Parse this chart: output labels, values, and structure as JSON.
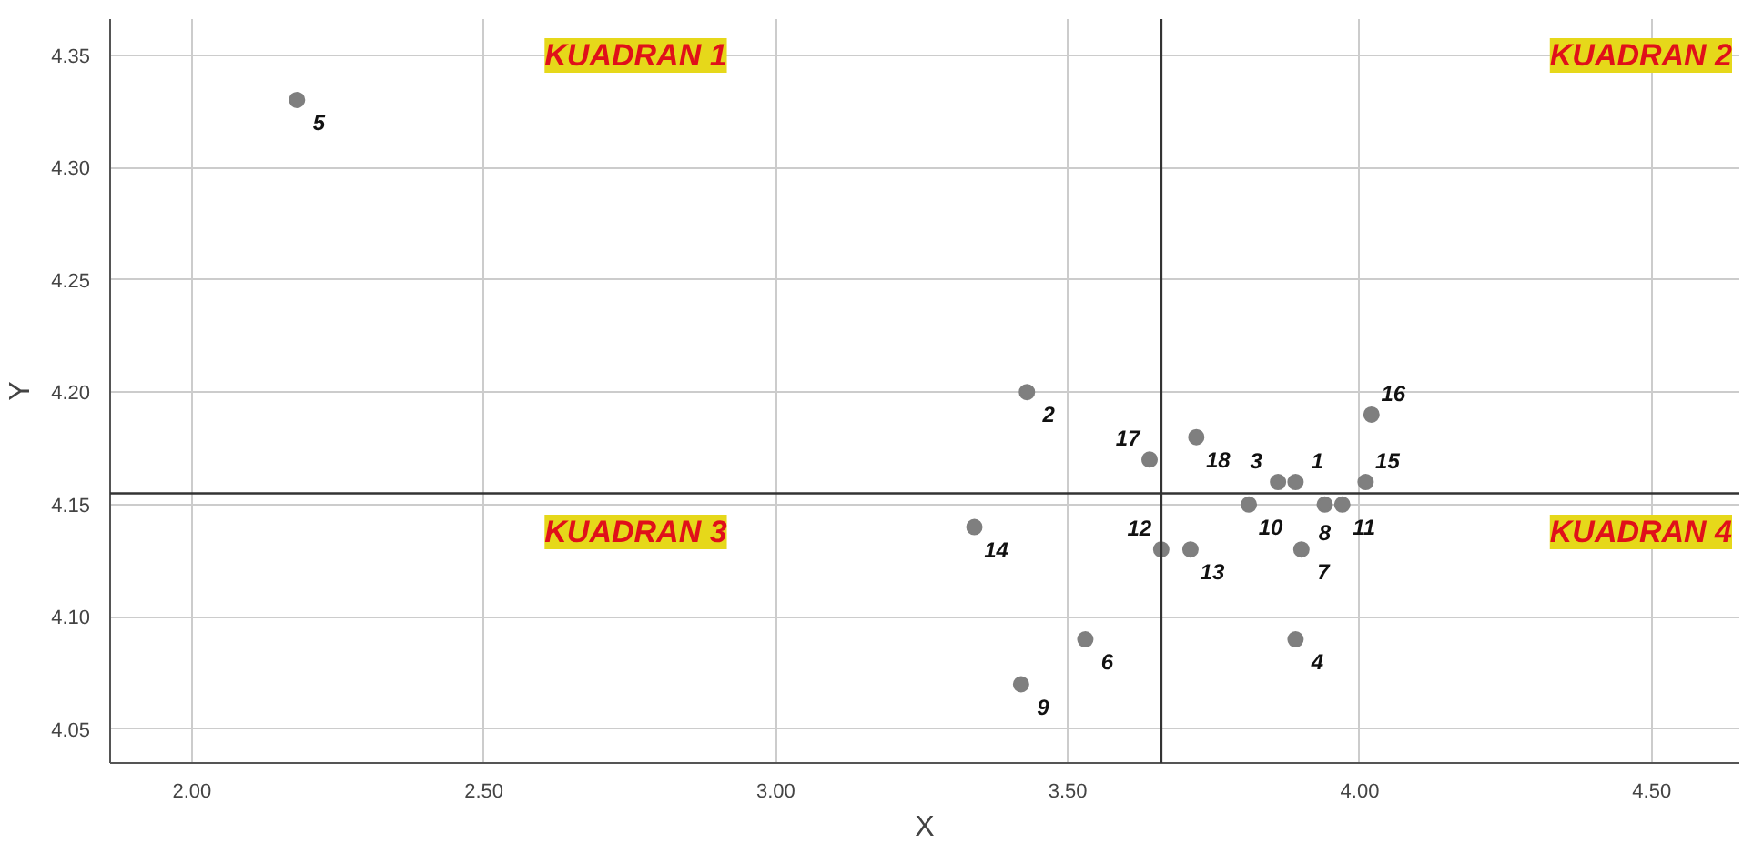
{
  "chart_data": {
    "type": "scatter",
    "xlabel": "X",
    "ylabel": "Y",
    "xlim": [
      1.86,
      4.65
    ],
    "ylim": [
      4.035,
      4.366
    ],
    "xticks": [
      {
        "value": 2,
        "label": "2.00"
      },
      {
        "value": 2.5,
        "label": "2.50"
      },
      {
        "value": 3,
        "label": "3.00"
      },
      {
        "value": 3.5,
        "label": "3.50"
      },
      {
        "value": 4,
        "label": "4.00"
      },
      {
        "value": 4.5,
        "label": "4.50"
      }
    ],
    "yticks": [
      {
        "value": 4.05,
        "label": "4.05"
      },
      {
        "value": 4.1,
        "label": "4.10"
      },
      {
        "value": 4.15,
        "label": "4.15"
      },
      {
        "value": 4.2,
        "label": "4.20"
      },
      {
        "value": 4.25,
        "label": "4.25"
      },
      {
        "value": 4.3,
        "label": "4.30"
      },
      {
        "value": 4.35,
        "label": "4.35"
      }
    ],
    "grid": true,
    "marker": "circle",
    "series": [
      {
        "color": "#7f7f7f",
        "x": [
          2.18,
          3.43,
          3.72,
          3.64,
          3.86,
          3.89,
          4.01,
          4.02,
          3.81,
          3.94,
          3.97,
          3.34,
          3.66,
          3.71,
          3.9,
          3.53,
          3.89,
          3.42
        ],
        "values": [
          4.33,
          4.2,
          4.18,
          4.17,
          4.16,
          4.16,
          4.16,
          4.19,
          4.15,
          4.15,
          4.15,
          4.14,
          4.13,
          4.13,
          4.13,
          4.09,
          4.09,
          4.07
        ]
      }
    ],
    "ref_lines": [
      {
        "axis": "x",
        "value": 3.66,
        "color": "#333333"
      },
      {
        "axis": "y",
        "value": 4.155,
        "color": "#333333"
      }
    ],
    "annotations": [
      "KUADRAN 1",
      "KUADRAN 2",
      "KUADRAN 3",
      "KUADRAN 4",
      {
        "text": "5",
        "x": 2.18,
        "y": 4.33
      },
      {
        "text": "2",
        "x": 3.43,
        "y": 4.2
      },
      {
        "text": "18",
        "x": 3.72,
        "y": 4.18
      },
      {
        "text": "17",
        "x": 3.64,
        "y": 4.17
      },
      {
        "text": "3",
        "x": 3.86,
        "y": 4.16
      },
      {
        "text": "1",
        "x": 3.89,
        "y": 4.16
      },
      {
        "text": "15",
        "x": 4.01,
        "y": 4.16
      },
      {
        "text": "16",
        "x": 4.02,
        "y": 4.19
      },
      {
        "text": "10",
        "x": 3.81,
        "y": 4.15
      },
      {
        "text": "8",
        "x": 3.94,
        "y": 4.15
      },
      {
        "text": "11",
        "x": 3.97,
        "y": 4.15
      },
      {
        "text": "14",
        "x": 3.34,
        "y": 4.14
      },
      {
        "text": "12",
        "x": 3.66,
        "y": 4.13
      },
      {
        "text": "13",
        "x": 3.71,
        "y": 4.13
      },
      {
        "text": "7",
        "x": 3.9,
        "y": 4.13
      },
      {
        "text": "6",
        "x": 3.53,
        "y": 4.09
      },
      {
        "text": "4",
        "x": 3.89,
        "y": 4.09
      },
      {
        "text": "9",
        "x": 3.42,
        "y": 4.07
      }
    ]
  }
}
